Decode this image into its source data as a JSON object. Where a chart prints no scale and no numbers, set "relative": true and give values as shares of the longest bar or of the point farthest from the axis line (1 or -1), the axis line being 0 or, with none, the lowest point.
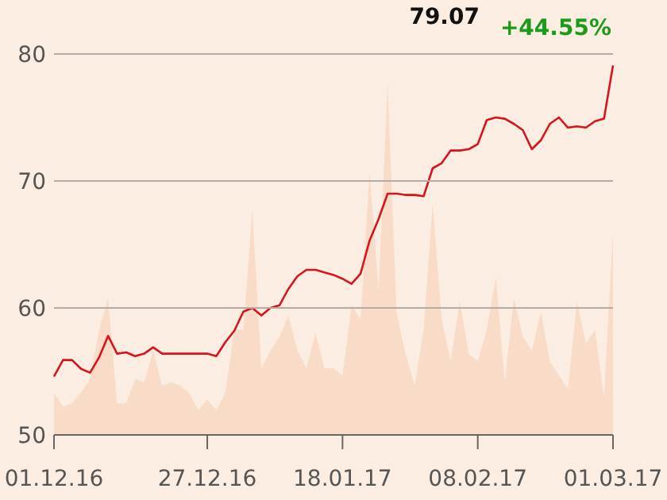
{
  "chart_data": [
    {
      "type": "area",
      "relative": true,
      "color": "#f8dcc7",
      "categories": [
        null,
        null,
        null,
        null,
        null,
        null,
        null,
        null,
        null,
        null,
        null,
        null,
        null,
        null,
        null,
        null,
        null,
        null,
        null,
        null,
        null,
        null,
        null,
        null,
        null,
        null,
        null,
        null,
        null,
        null,
        null,
        null,
        null,
        null,
        null,
        null,
        null,
        null,
        null,
        null,
        null,
        null,
        null,
        null,
        null,
        null,
        null,
        null,
        null,
        null,
        null,
        null,
        null,
        null,
        null,
        null,
        null,
        null,
        null,
        null,
        null,
        null,
        null
      ],
      "values": [
        0.12,
        0.08,
        0.09,
        0.12,
        0.16,
        0.3,
        0.39,
        0.09,
        0.09,
        0.16,
        0.15,
        0.24,
        0.14,
        0.15,
        0.14,
        0.12,
        0.07,
        0.1,
        0.07,
        0.12,
        0.3,
        0.3,
        0.64,
        0.19,
        0.24,
        0.28,
        0.34,
        0.24,
        0.19,
        0.29,
        0.19,
        0.19,
        0.17,
        0.37,
        0.33,
        0.75,
        0.41,
        1,
        0.35,
        0.23,
        0.14,
        0.3,
        0.66,
        0.33,
        0.21,
        0.38,
        0.23,
        0.21,
        0.3,
        0.45,
        0.15,
        0.39,
        0.28,
        0.24,
        0.35,
        0.21,
        0.17,
        0.13,
        0.38,
        0.26,
        0.3,
        0.11,
        0.58
      ]
    },
    {
      "type": "line",
      "color": "#d7141a",
      "ylim": [
        50,
        80
      ],
      "yticks": [
        50,
        60,
        70,
        80
      ],
      "grid": "y",
      "annotations": [
        "79.07",
        "+44.55%"
      ],
      "categories": [
        "01.12.16",
        null,
        null,
        null,
        null,
        null,
        null,
        null,
        null,
        null,
        null,
        null,
        null,
        null,
        null,
        null,
        null,
        "27.12.16",
        null,
        null,
        null,
        null,
        null,
        null,
        null,
        null,
        null,
        null,
        null,
        null,
        null,
        null,
        "18.01.17",
        null,
        null,
        null,
        null,
        null,
        null,
        null,
        null,
        null,
        null,
        null,
        null,
        null,
        null,
        "08.02.17",
        null,
        null,
        null,
        null,
        null,
        null,
        null,
        null,
        null,
        null,
        null,
        null,
        null,
        null,
        "01.03.17"
      ],
      "values": [
        54.6,
        55.9,
        55.9,
        55.2,
        54.9,
        56.1,
        57.8,
        56.4,
        56.5,
        56.2,
        56.4,
        56.9,
        56.4,
        56.4,
        56.4,
        56.4,
        56.4,
        56.4,
        56.2,
        57.3,
        58.2,
        59.7,
        60.0,
        59.4,
        60.0,
        60.2,
        61.5,
        62.5,
        63.0,
        63.0,
        62.8,
        62.6,
        62.3,
        61.9,
        62.7,
        65.3,
        67.0,
        69.0,
        69.0,
        68.9,
        68.9,
        68.8,
        71.0,
        71.4,
        72.4,
        72.4,
        72.5,
        72.9,
        74.8,
        75.0,
        74.9,
        74.5,
        74.0,
        72.5,
        73.2,
        74.5,
        75.0,
        74.2,
        74.3,
        74.2,
        74.7,
        74.9,
        79.1
      ]
    }
  ]
}
